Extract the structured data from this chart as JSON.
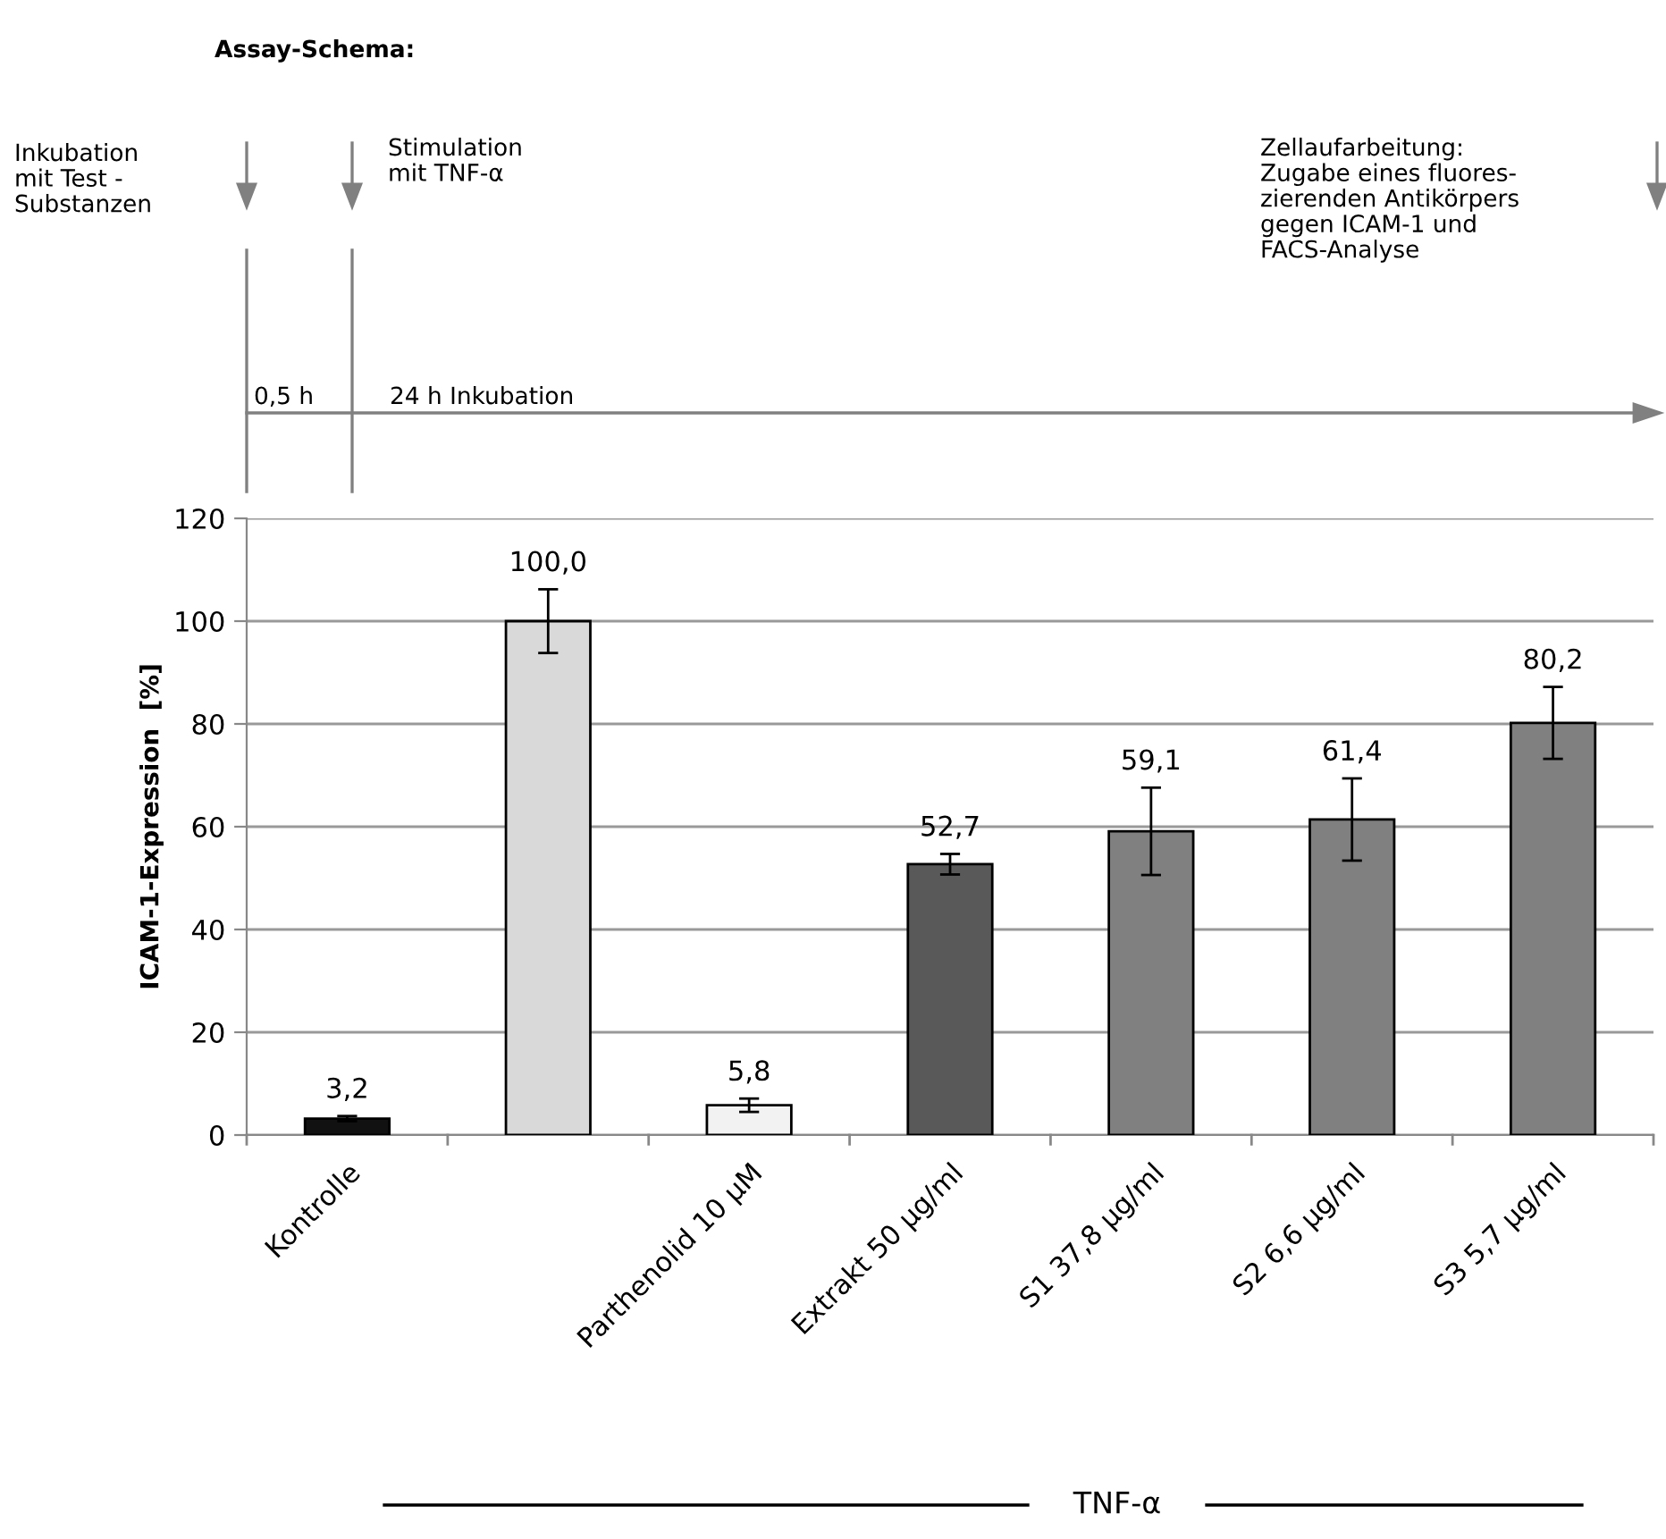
{
  "chart_data": {
    "type": "bar",
    "categories": [
      "Kontrolle",
      null,
      "Parthenolid 10 µM",
      "Extrakt 50 µg/ml",
      "S1 37,8 µg/ml",
      "S2 6,6 µg/ml",
      "S3 5,7 µg/ml"
    ],
    "values": [
      3.2,
      100.0,
      5.8,
      52.7,
      59.1,
      61.4,
      80.2
    ],
    "colors": [
      "#111111",
      "#d9d9d9",
      "#f2f2f2",
      "#595959",
      "#808080",
      "#808080",
      "#808080"
    ],
    "errors": [
      0.5,
      6.2,
      1.3,
      2,
      8.5,
      8,
      7
    ],
    "value_labels": [
      "3,2",
      "100,0",
      "5,8",
      "52,7",
      "59,1",
      "61,4",
      "80,2"
    ],
    "ylabel": "ICAM-1-Expression  [%]",
    "ylim": [
      0,
      120
    ],
    "yticks": [
      0,
      20,
      40,
      60,
      80,
      100,
      120
    ],
    "grid": "y",
    "legend": false,
    "annotations": [
      "Assay-Schema:",
      "Inkubation\nmit Test -\nSubstanzen",
      "Stimulation\nmit TNF-α",
      "Zellaufarbeitung:\nZugabe eines fluores-\nzierenden Antikörpers\ngegen ICAM-1 und\nFACS-Analyse",
      "0,5 h",
      "24 h Inkubation",
      "TNF-α"
    ]
  }
}
